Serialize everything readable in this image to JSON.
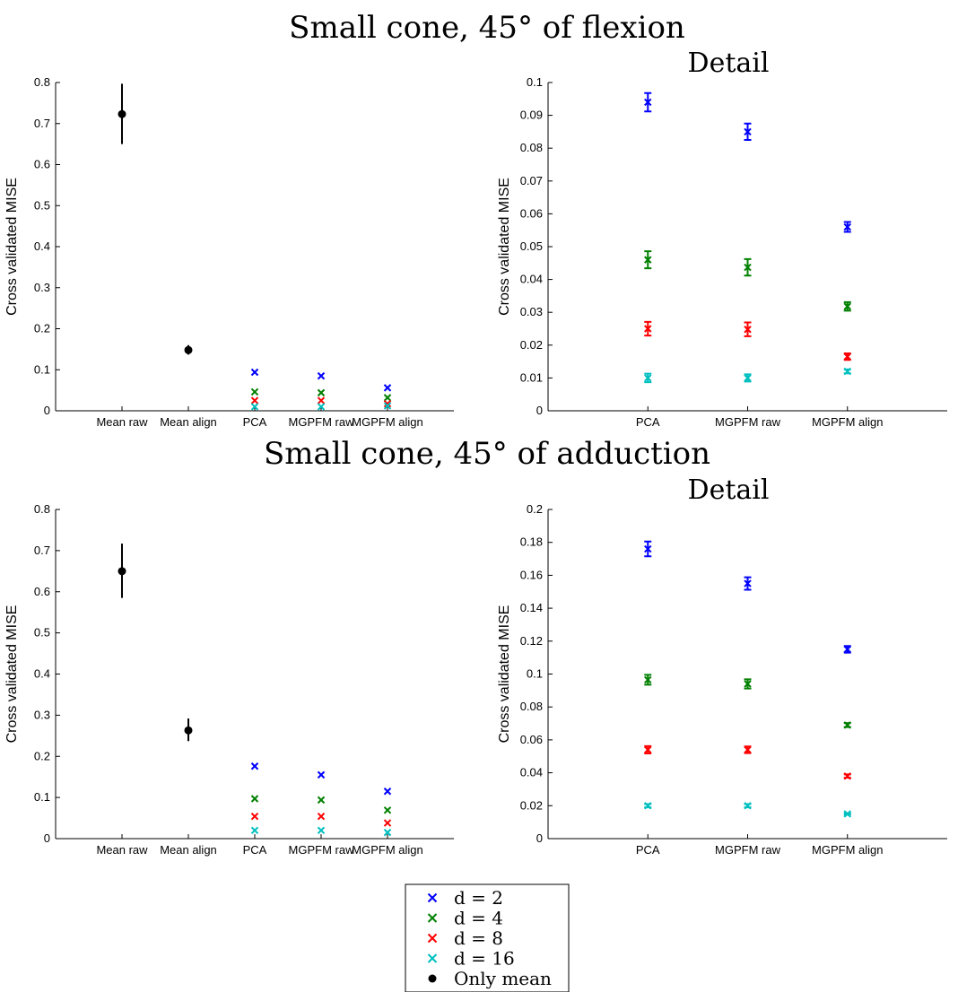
{
  "series_colors": {
    "d2": "#0000ff",
    "d4": "#008000",
    "d8": "#ff0000",
    "d16": "#00bfbf",
    "mean": "#000000"
  },
  "rows": [
    {
      "title": "Small cone, 45° of flexion",
      "detail_title": "Detail"
    },
    {
      "title": "Small cone, 45° of adduction",
      "detail_title": "Detail"
    }
  ],
  "legend": {
    "entries": [
      {
        "label": "d = 2",
        "marker": "x",
        "color": "#0000ff"
      },
      {
        "label": "d = 4",
        "marker": "x",
        "color": "#008000"
      },
      {
        "label": "d = 8",
        "marker": "x",
        "color": "#ff0000"
      },
      {
        "label": "d = 16",
        "marker": "x",
        "color": "#00bfbf"
      },
      {
        "label": "Only mean",
        "marker": "dot",
        "color": "#000000"
      }
    ]
  },
  "chart_data": [
    {
      "type": "scatter",
      "title": "Small cone, 45° of flexion",
      "ylabel": "Cross validated MISE",
      "categories": [
        "Mean raw",
        "Mean align",
        "PCA",
        "MGPFM raw",
        "MGPFM align"
      ],
      "ylim": [
        0,
        0.8
      ],
      "yticks": [
        "0",
        "0.1",
        "0.2",
        "0.3",
        "0.4",
        "0.5",
        "0.6",
        "0.7",
        "0.8"
      ],
      "mean_points": [
        {
          "category": "Mean raw",
          "y": 0.723,
          "lo": 0.65,
          "hi": 0.797
        },
        {
          "category": "Mean align",
          "y": 0.148,
          "lo": 0.137,
          "hi": 0.16
        }
      ],
      "series": [
        {
          "key": "d2",
          "values": [
            null,
            null,
            0.094,
            0.085,
            0.056
          ]
        },
        {
          "key": "d4",
          "values": [
            null,
            null,
            0.046,
            0.044,
            0.032
          ]
        },
        {
          "key": "d8",
          "values": [
            null,
            null,
            0.025,
            0.025,
            0.017
          ]
        },
        {
          "key": "d16",
          "values": [
            null,
            null,
            0.01,
            0.01,
            0.012
          ]
        }
      ]
    },
    {
      "type": "scatter",
      "title": "Detail",
      "ylabel": "Cross validated MISE",
      "categories": [
        "PCA",
        "MGPFM raw",
        "MGPFM align"
      ],
      "ylim": [
        0,
        0.1
      ],
      "yticks": [
        "0",
        "0.01",
        "0.02",
        "0.03",
        "0.04",
        "0.05",
        "0.06",
        "0.07",
        "0.08",
        "0.09",
        "0.1"
      ],
      "series": [
        {
          "key": "d2",
          "values": [
            0.094,
            0.085,
            0.056
          ],
          "err": [
            0.0028,
            0.0025,
            0.0015
          ]
        },
        {
          "key": "d4",
          "values": [
            0.046,
            0.0437,
            0.0318
          ],
          "err": [
            0.0026,
            0.0025,
            0.0013
          ]
        },
        {
          "key": "d8",
          "values": [
            0.025,
            0.0248,
            0.0165
          ],
          "err": [
            0.0021,
            0.0021,
            0.001
          ]
        },
        {
          "key": "d16",
          "values": [
            0.01,
            0.01,
            0.012
          ],
          "err": [
            0.0013,
            0.0011,
            0.0006
          ]
        }
      ]
    },
    {
      "type": "scatter",
      "title": "Small cone, 45° of adduction",
      "ylabel": "Cross validated MISE",
      "categories": [
        "Mean raw",
        "Mean align",
        "PCA",
        "MGPFM raw",
        "MGPFM align"
      ],
      "ylim": [
        0,
        0.8
      ],
      "yticks": [
        "0",
        "0.1",
        "0.2",
        "0.3",
        "0.4",
        "0.5",
        "0.6",
        "0.7",
        "0.8"
      ],
      "mean_points": [
        {
          "category": "Mean raw",
          "y": 0.65,
          "lo": 0.585,
          "hi": 0.717
        },
        {
          "category": "Mean align",
          "y": 0.263,
          "lo": 0.237,
          "hi": 0.292
        }
      ],
      "series": [
        {
          "key": "d2",
          "values": [
            null,
            null,
            0.176,
            0.155,
            0.115
          ]
        },
        {
          "key": "d4",
          "values": [
            null,
            null,
            0.097,
            0.094,
            0.069
          ]
        },
        {
          "key": "d8",
          "values": [
            null,
            null,
            0.054,
            0.054,
            0.038
          ]
        },
        {
          "key": "d16",
          "values": [
            null,
            null,
            0.02,
            0.02,
            0.015
          ]
        }
      ]
    },
    {
      "type": "scatter",
      "title": "Detail",
      "ylabel": "Cross validated MISE",
      "categories": [
        "PCA",
        "MGPFM raw",
        "MGPFM align"
      ],
      "ylim": [
        0,
        0.2
      ],
      "yticks": [
        "0",
        "0.02",
        "0.04",
        "0.06",
        "0.08",
        "0.1",
        "0.12",
        "0.14",
        "0.16",
        "0.18",
        "0.2"
      ],
      "series": [
        {
          "key": "d2",
          "values": [
            0.176,
            0.155,
            0.115
          ],
          "err": [
            0.0045,
            0.0038,
            0.002
          ]
        },
        {
          "key": "d4",
          "values": [
            0.0965,
            0.094,
            0.069
          ],
          "err": [
            0.003,
            0.0028,
            0.0012
          ]
        },
        {
          "key": "d8",
          "values": [
            0.054,
            0.054,
            0.038
          ],
          "err": [
            0.0022,
            0.002,
            0.001
          ]
        },
        {
          "key": "d16",
          "values": [
            0.02,
            0.02,
            0.015
          ],
          "err": [
            0.001,
            0.001,
            0.0005
          ]
        }
      ]
    }
  ]
}
